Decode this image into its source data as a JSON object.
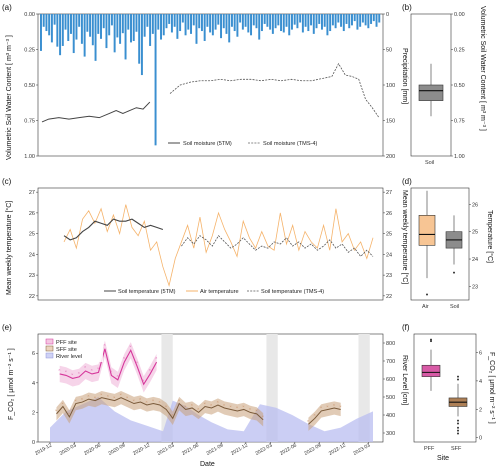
{
  "panels": {
    "a": "(a)",
    "b": "(b)",
    "c": "(c)",
    "d": "(d)",
    "e": "(e)",
    "f": "(f)"
  },
  "colors": {
    "precip": "#3a8fd0",
    "soil_5tm": "#444444",
    "soil_tms": "#555555",
    "air": "#f5b36b",
    "pff": "#d6379b",
    "sff": "#7a5a3a",
    "sff_fill": "#c8a07a",
    "river": "#b9bdf0",
    "box_grey": "#8c8c8c",
    "box_air": "#f7c594",
    "box_pff": "#d85aa6",
    "box_sff": "#ad7f55",
    "shade": "#e8e8e8"
  },
  "chart_data": [
    {
      "id": "a",
      "type": "line",
      "ylabel": "Volumetric Soil Water Content [ m³ m⁻³ ]",
      "ylabel_right": "Precipitation [mm]",
      "yticks": [
        "0.00",
        "0.25",
        "0.50",
        "0.75",
        "1.00"
      ],
      "yticks_right": [
        "0",
        "50",
        "100",
        "150",
        "200"
      ],
      "ylim_reversed": [
        0,
        1
      ],
      "ylim_right_reversed": [
        0,
        200
      ],
      "series": [
        {
          "name": "Soil moisture (5TM)",
          "style": "solid",
          "x": [
            0.0,
            0.02,
            0.05,
            0.08,
            0.11,
            0.14,
            0.17,
            0.2,
            0.22,
            0.24,
            0.26,
            0.28,
            0.3,
            0.32
          ],
          "y": [
            0.76,
            0.74,
            0.73,
            0.74,
            0.73,
            0.72,
            0.73,
            0.7,
            0.68,
            0.7,
            0.68,
            0.66,
            0.67,
            0.62
          ]
        },
        {
          "name": "Soil moisture (TMS-4)",
          "style": "dashed",
          "x": [
            0.38,
            0.41,
            0.44,
            0.47,
            0.5,
            0.53,
            0.56,
            0.59,
            0.62,
            0.65,
            0.68,
            0.71,
            0.74,
            0.77,
            0.8,
            0.82,
            0.84,
            0.86,
            0.88,
            0.9,
            0.92,
            0.94,
            0.96,
            0.98,
            1.0
          ],
          "y": [
            0.56,
            0.5,
            0.48,
            0.47,
            0.47,
            0.46,
            0.47,
            0.46,
            0.46,
            0.47,
            0.46,
            0.47,
            0.46,
            0.47,
            0.47,
            0.46,
            0.45,
            0.44,
            0.35,
            0.43,
            0.44,
            0.46,
            0.6,
            0.66,
            0.73
          ]
        }
      ],
      "precip_mm": [
        52,
        18,
        24,
        30,
        40,
        15,
        46,
        58,
        45,
        22,
        38,
        28,
        55,
        36,
        18,
        42,
        60,
        25,
        32,
        44,
        66,
        28,
        35,
        20,
        48,
        30,
        16,
        54,
        33,
        42,
        27,
        64,
        22,
        40,
        38,
        25,
        70,
        86,
        32,
        18,
        45,
        28,
        185,
        22,
        36,
        30,
        20,
        14,
        26,
        18,
        35,
        24,
        12,
        30,
        22,
        28,
        16,
        42,
        20,
        24,
        38,
        18,
        26,
        30,
        22,
        15,
        34,
        20,
        28,
        40,
        18,
        24,
        32,
        12,
        22,
        18,
        26,
        30,
        16,
        20,
        36,
        24,
        14,
        18,
        22,
        28,
        20,
        16,
        24,
        26,
        18,
        30,
        22,
        15,
        20,
        12,
        26,
        18,
        24,
        16,
        28,
        20,
        14,
        22,
        18,
        30,
        24,
        16,
        20,
        12,
        18,
        24,
        14,
        20,
        16,
        10,
        22,
        18,
        12,
        16,
        20,
        14,
        10,
        18,
        12
      ]
    },
    {
      "id": "b",
      "type": "box",
      "ylabel": "Volumetric Soil Water Content [ m³ m⁻³ ]",
      "yticks": [
        "0.00",
        "0.25",
        "0.50",
        "0.75",
        "1.00"
      ],
      "categories": [
        "Soil"
      ],
      "boxes": [
        {
          "name": "Soil",
          "min": 0.35,
          "q1": 0.5,
          "median": 0.54,
          "q3": 0.61,
          "max": 0.72
        }
      ]
    },
    {
      "id": "c",
      "type": "line",
      "ylabel": "Mean weekly temperature [°C]",
      "ylabel_right": "Mean weekly temperature [°C]",
      "yticks": [
        "22",
        "23",
        "24",
        "25",
        "26",
        "27"
      ],
      "yticks_right": [
        "22",
        "23",
        "24",
        "25",
        "26",
        "27"
      ],
      "ylim": [
        21.8,
        27.2
      ],
      "series": [
        {
          "name": "Soil temperature (5TM)",
          "style": "solid",
          "x": [
            0.0,
            0.02,
            0.04,
            0.06,
            0.08,
            0.1,
            0.12,
            0.14,
            0.16,
            0.18,
            0.2,
            0.22,
            0.24,
            0.26,
            0.28,
            0.3,
            0.32
          ],
          "y": [
            24.9,
            24.7,
            24.8,
            25.1,
            25.3,
            25.6,
            25.5,
            25.4,
            25.7,
            25.6,
            25.6,
            25.7,
            25.5,
            25.3,
            25.4,
            25.3,
            25.2
          ]
        },
        {
          "name": "Air temperature",
          "style": "solid",
          "x": [
            0.0,
            0.02,
            0.04,
            0.06,
            0.08,
            0.1,
            0.12,
            0.14,
            0.16,
            0.18,
            0.2,
            0.22,
            0.24,
            0.26,
            0.28,
            0.3,
            0.32,
            0.34,
            0.36,
            0.38,
            0.4,
            0.42,
            0.44,
            0.46,
            0.48,
            0.5,
            0.52,
            0.54,
            0.56,
            0.58,
            0.6,
            0.62,
            0.64,
            0.66,
            0.68,
            0.7,
            0.72,
            0.74,
            0.76,
            0.78,
            0.8,
            0.82,
            0.84,
            0.86,
            0.88,
            0.9,
            0.92,
            0.94,
            0.96,
            0.98,
            1.0
          ],
          "y": [
            24.6,
            25.2,
            24.3,
            25.7,
            26.1,
            25.5,
            26.2,
            25.1,
            25.9,
            25.0,
            26.4,
            25.3,
            24.9,
            25.6,
            24.2,
            24.6,
            23.4,
            22.5,
            23.8,
            24.6,
            25.4,
            24.3,
            25.8,
            24.1,
            24.9,
            26.0,
            25.2,
            24.6,
            23.9,
            25.6,
            24.8,
            24.3,
            25.1,
            24.4,
            24.2,
            26.0,
            24.5,
            25.4,
            24.2,
            25.1,
            24.6,
            24.3,
            25.4,
            24.2,
            26.2,
            24.6,
            25.0,
            24.2,
            24.6,
            23.8,
            24.8
          ]
        },
        {
          "name": "Soil temperature (TMS-4)",
          "style": "dashed",
          "x": [
            0.38,
            0.4,
            0.42,
            0.44,
            0.46,
            0.48,
            0.5,
            0.52,
            0.54,
            0.56,
            0.58,
            0.6,
            0.62,
            0.64,
            0.66,
            0.68,
            0.7,
            0.72,
            0.74,
            0.76,
            0.78,
            0.8,
            0.82,
            0.84,
            0.86,
            0.88,
            0.9,
            0.92,
            0.94,
            0.96,
            0.98,
            1.0
          ],
          "y": [
            24.4,
            24.8,
            24.5,
            24.9,
            24.7,
            24.4,
            24.9,
            24.6,
            24.3,
            24.5,
            24.8,
            24.5,
            24.2,
            24.4,
            24.3,
            24.6,
            24.5,
            24.8,
            24.4,
            24.6,
            24.3,
            24.5,
            24.2,
            24.4,
            24.7,
            24.3,
            24.5,
            24.1,
            24.3,
            23.9,
            24.2,
            23.9
          ]
        }
      ]
    },
    {
      "id": "d",
      "type": "box",
      "ylabel": "Temperature [°C]",
      "yticks": [
        "23",
        "24",
        "25",
        "26"
      ],
      "ylim": [
        22.5,
        26.6
      ],
      "categories": [
        "Air",
        "Soil"
      ],
      "boxes": [
        {
          "name": "Air",
          "min": 23.3,
          "q1": 24.5,
          "median": 24.9,
          "q3": 25.6,
          "max": 26.5,
          "outliers": [
            22.7
          ]
        },
        {
          "name": "Soil",
          "min": 23.8,
          "q1": 24.4,
          "median": 24.7,
          "q3": 25.0,
          "max": 25.6,
          "outliers": [
            23.5
          ]
        }
      ]
    },
    {
      "id": "e",
      "type": "line",
      "xlabel": "Date",
      "ylabel": "F_CO₂ [ μmol m⁻² s⁻¹ ]",
      "ylabel_right": "River Level [cm]",
      "xticks": [
        "2019-12",
        "2020-03",
        "2020-06",
        "2020-09",
        "2020-12",
        "2021-03",
        "2021-06",
        "2021-09",
        "2021-12",
        "2022-03",
        "2022-06",
        "2022-09",
        "2022-12",
        "2023-03"
      ],
      "yticks": [
        "0",
        "2",
        "4",
        "6"
      ],
      "yticks_right": [
        "300",
        "400",
        "500",
        "600",
        "700",
        "800"
      ],
      "ylim": [
        0,
        7.3
      ],
      "legend": [
        "PFF site",
        "SFF site",
        "River level"
      ],
      "series": [
        {
          "name": "PFF site",
          "x": [
            0.03,
            0.05,
            0.07,
            0.09,
            0.11,
            0.13,
            0.15,
            0.17,
            0.19,
            0.21,
            0.23,
            0.25,
            0.27,
            0.29,
            0.31,
            0.33
          ],
          "y": [
            4.6,
            4.5,
            4.3,
            4.4,
            4.8,
            4.6,
            4.7,
            6.3,
            4.5,
            4.2,
            5.4,
            6.2,
            5.1,
            3.9,
            4.6,
            5.4
          ]
        },
        {
          "name": "SFF site",
          "x": [
            0.02,
            0.04,
            0.06,
            0.08,
            0.1,
            0.12,
            0.14,
            0.16,
            0.18,
            0.2,
            0.22,
            0.24,
            0.26,
            0.28,
            0.3,
            0.32,
            0.34,
            0.36,
            0.38,
            0.4,
            0.42,
            0.44,
            0.46,
            0.48,
            0.5,
            0.52,
            0.54,
            0.56,
            0.58,
            0.6,
            0.62,
            0.64,
            0.66,
            0.8,
            0.82,
            0.84,
            0.86,
            0.88,
            0.9
          ],
          "y": [
            1.9,
            2.4,
            1.7,
            2.6,
            2.7,
            2.9,
            2.8,
            3.0,
            2.9,
            2.8,
            3.0,
            2.8,
            2.6,
            2.7,
            2.5,
            2.6,
            2.5,
            2.2,
            1.6,
            2.6,
            2.2,
            2.3,
            2.0,
            2.4,
            2.3,
            2.5,
            2.3,
            2.2,
            2.1,
            2.2,
            2.0,
            1.9,
            1.5,
            1.2,
            1.6,
            2.1,
            2.2,
            2.3,
            2.2
          ]
        },
        {
          "name": "River level",
          "x": [
            0.0,
            0.05,
            0.1,
            0.15,
            0.2,
            0.25,
            0.3,
            0.35,
            0.38,
            0.42,
            0.46,
            0.5,
            0.55,
            0.6,
            0.65,
            0.7,
            0.75,
            0.8,
            0.85,
            0.9,
            0.95,
            1.0
          ],
          "y": [
            330,
            420,
            460,
            500,
            420,
            370,
            340,
            310,
            480,
            450,
            400,
            360,
            320,
            310,
            460,
            440,
            400,
            350,
            310,
            330,
            380,
            420
          ]
        }
      ]
    },
    {
      "id": "f",
      "type": "box",
      "xlabel": "Site",
      "ylabel": "F_CO₂ [ μmol m⁻² s⁻¹ ]",
      "yticks": [
        "0",
        "2",
        "4",
        "6"
      ],
      "ylim": [
        -0.3,
        7.3
      ],
      "categories": [
        "PFF",
        "SFF"
      ],
      "boxes": [
        {
          "name": "PFF",
          "min": 3.3,
          "q1": 4.3,
          "median": 4.6,
          "q3": 5.1,
          "max": 6.2,
          "outliers": [
            6.9,
            6.8
          ]
        },
        {
          "name": "SFF",
          "min": 1.5,
          "q1": 2.2,
          "median": 2.5,
          "q3": 2.8,
          "max": 3.8,
          "outliers": [
            1.2,
            1.0,
            0.7,
            0.5,
            0.3,
            4.1,
            4.3
          ]
        }
      ]
    }
  ],
  "legends": {
    "a": [
      "Soil moisture (5TM)",
      "Soil moisture (TMS-4)"
    ],
    "c": [
      "Soil temperature (5TM)",
      "Air temperature",
      "Soil temperature (TMS-4)"
    ],
    "e": [
      "PFF site",
      "SFF site",
      "River level"
    ]
  },
  "xlabels": {
    "b": "Soil",
    "e": "Date",
    "f": "Site"
  }
}
